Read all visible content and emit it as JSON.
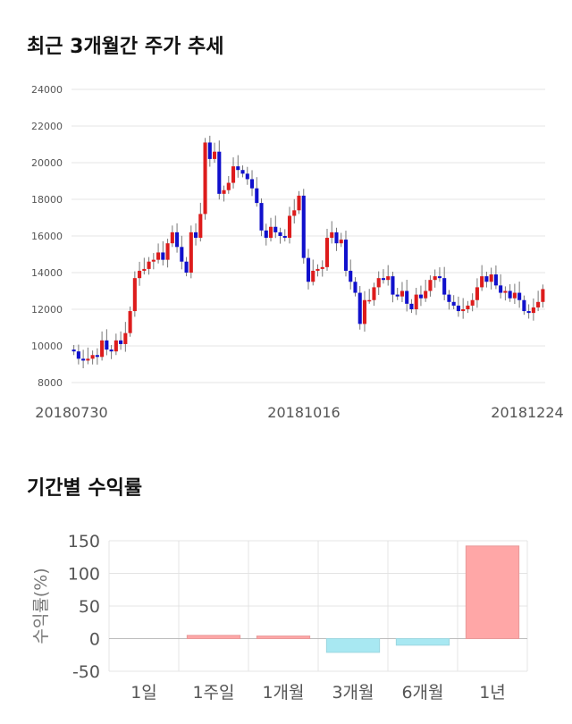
{
  "titles": {
    "candle": "최근 3개월간 주가 추세",
    "returns": "기간별 수익률"
  },
  "colors": {
    "up": "#dd1c1c",
    "down": "#1010cc",
    "pos": "#ffa7a7",
    "neg": "#a8e8f2"
  },
  "chart_data": [
    {
      "type": "candlestick",
      "title": "최근 3개월간 주가 추세",
      "x_tick_labels": [
        "20180730",
        "20181016",
        "20181224"
      ],
      "ylim": [
        8000,
        24000
      ],
      "y_ticks": [
        8000,
        10000,
        12000,
        14000,
        16000,
        18000,
        20000,
        22000,
        24000
      ],
      "grid": true,
      "closes": [
        9700,
        9300,
        9200,
        9300,
        9500,
        9400,
        10300,
        9800,
        9700,
        10300,
        10100,
        10700,
        11900,
        13700,
        14100,
        14200,
        14600,
        14700,
        15100,
        14700,
        15600,
        16200,
        15400,
        14600,
        14000,
        16200,
        15900,
        17200,
        21100,
        20200,
        20600,
        18300,
        18500,
        18900,
        19800,
        19600,
        19400,
        19100,
        18600,
        17800,
        16300,
        15900,
        16500,
        16200,
        16000,
        15900,
        17100,
        17400,
        18200,
        14800,
        13500,
        14100,
        14200,
        14300,
        15900,
        16200,
        15600,
        15800,
        14100,
        13500,
        12900,
        11200,
        12500,
        12500,
        13200,
        13700,
        13600,
        13800,
        12800,
        12700,
        13000,
        12300,
        12000,
        12800,
        12600,
        13000,
        13600,
        13800,
        13700,
        12800,
        12400,
        12200,
        11900,
        12000,
        12200,
        12500,
        13200,
        13800,
        13500,
        13900,
        13300,
        12900,
        13000,
        12600,
        12900,
        12500,
        11900,
        11800,
        12100,
        12400,
        13100
      ]
    },
    {
      "type": "bar",
      "title": "기간별 수익률",
      "ylabel": "수익률(%)",
      "categories": [
        "1일",
        "1주일",
        "1개월",
        "3개월",
        "6개월",
        "1년"
      ],
      "values": [
        0,
        5,
        4,
        -21,
        -10,
        142
      ],
      "ylim": [
        -50,
        150
      ],
      "y_ticks": [
        -50,
        0,
        50,
        100,
        150
      ],
      "grid": true
    }
  ]
}
